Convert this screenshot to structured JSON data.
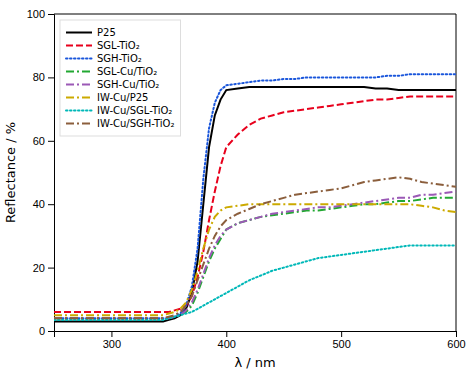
{
  "chart_data": {
    "type": "line",
    "xlabel": "λ / nm",
    "ylabel": "Reflectance / %",
    "xlim": [
      250,
      600
    ],
    "ylim": [
      0,
      100
    ],
    "xticks": [
      300,
      400,
      500,
      600
    ],
    "yticks": [
      0,
      20,
      40,
      60,
      80,
      100
    ],
    "grid": false,
    "legend": "upper left",
    "x": [
      250,
      260,
      270,
      280,
      290,
      300,
      310,
      320,
      325,
      330,
      335,
      340,
      345,
      350,
      355,
      360,
      365,
      370,
      375,
      380,
      385,
      390,
      395,
      400,
      410,
      420,
      430,
      440,
      450,
      460,
      470,
      480,
      490,
      500,
      510,
      520,
      530,
      540,
      550,
      560,
      570,
      580,
      590,
      600
    ],
    "series": [
      {
        "name": "P25",
        "color": "#000000",
        "line_style": "solid",
        "values": [
          3,
          3,
          3,
          3,
          3,
          3,
          3,
          3,
          3,
          3,
          3,
          3,
          3,
          3.5,
          4,
          5,
          7,
          12,
          22,
          40,
          58,
          68,
          73,
          76,
          76.5,
          77,
          77,
          77,
          77,
          77,
          77,
          77,
          77,
          77,
          77,
          77,
          76.5,
          76.5,
          76,
          76,
          76,
          76,
          76,
          76
        ]
      },
      {
        "name": "SGL-TiO₂",
        "color": "#e8001c",
        "line_style": "dashed",
        "values": [
          6,
          6,
          6,
          6,
          6,
          6,
          6,
          6,
          6,
          6,
          6,
          6,
          6,
          6,
          6.5,
          7,
          8,
          11,
          17,
          25,
          35,
          44,
          52,
          58,
          62,
          65,
          67,
          68,
          69,
          69.5,
          70,
          70.5,
          71,
          71.5,
          72,
          72.5,
          73,
          73,
          73.5,
          74,
          74,
          74,
          74,
          74
        ]
      },
      {
        "name": "SGH-TiO₂",
        "color": "#1a56db",
        "line_style": "dotted",
        "values": [
          4,
          4,
          4,
          4,
          4,
          4,
          4,
          4,
          4,
          4,
          4,
          4,
          4,
          4,
          4.5,
          5.5,
          8,
          14,
          26,
          48,
          64,
          72,
          76,
          77.5,
          78,
          78.5,
          79,
          79,
          79.5,
          79.5,
          80,
          80,
          80,
          80,
          80,
          80,
          80,
          80.5,
          80.5,
          81,
          81,
          81,
          81,
          81
        ]
      },
      {
        "name": "SGL-Cu/TiO₂",
        "color": "#22a832",
        "line_style": "dashdot",
        "values": [
          4,
          4,
          4,
          4,
          4,
          4,
          4,
          4,
          4,
          4,
          4,
          4,
          4,
          4,
          4.5,
          5,
          6,
          8,
          12,
          17,
          22,
          26,
          29,
          32,
          34,
          35,
          36,
          36.5,
          37,
          37.5,
          38,
          38,
          38.5,
          39,
          39.5,
          40,
          40,
          40.5,
          41,
          41,
          41.5,
          42,
          42,
          42
        ]
      },
      {
        "name": "SGH-Cu/TiO₂",
        "color": "#9b59b6",
        "line_style": "dashdot",
        "values": [
          4,
          4,
          4,
          4,
          4,
          4,
          4,
          4,
          4,
          4,
          4,
          4,
          4,
          4,
          4.5,
          5,
          6.5,
          9,
          13,
          18,
          23,
          27,
          30,
          32,
          34,
          35,
          36,
          37,
          37.5,
          38,
          38.5,
          39,
          39,
          39.5,
          40,
          40.5,
          41,
          41.5,
          42,
          42,
          43,
          43,
          43.5,
          44
        ]
      },
      {
        "name": "IW-Cu/P25",
        "color": "#ccaa00",
        "line_style": "dashdot",
        "values": [
          5,
          5,
          5,
          5,
          5,
          5,
          5,
          5,
          5,
          5,
          5,
          5,
          5,
          5.5,
          6,
          7,
          9,
          13,
          19,
          26,
          32,
          36,
          38,
          39,
          39.5,
          40,
          40,
          40,
          40,
          40,
          40,
          40,
          40,
          40,
          40,
          40,
          40,
          40,
          40,
          40,
          39.5,
          39,
          38,
          37.5
        ]
      },
      {
        "name": "IW-Cu/SGL-TiO₂",
        "color": "#00b8b8",
        "line_style": "dotted",
        "values": [
          3.5,
          3.5,
          3.5,
          3.5,
          3.5,
          3.5,
          3.5,
          3.5,
          3.5,
          3.5,
          3.5,
          3.5,
          3.5,
          4,
          4.5,
          5,
          5.5,
          6,
          7,
          8,
          9,
          10,
          11,
          12,
          14,
          16,
          17.5,
          19,
          20,
          21,
          22,
          23,
          23.5,
          24,
          24.5,
          25,
          25.5,
          26,
          26.5,
          27,
          27,
          27,
          27,
          27
        ]
      },
      {
        "name": "IW-Cu/SGH-TiO₂",
        "color": "#8b5e3c",
        "line_style": "dashdot",
        "values": [
          4,
          4,
          4,
          4,
          4,
          4,
          4,
          4,
          4,
          4,
          4,
          4,
          4,
          4.5,
          5,
          6,
          8,
          11,
          16,
          21,
          26,
          30,
          33,
          35,
          37,
          38.5,
          40,
          41,
          42,
          43,
          43.5,
          44,
          44.5,
          45,
          46,
          47,
          47.5,
          48,
          48.5,
          48,
          47,
          46.5,
          46,
          45.5
        ]
      }
    ]
  }
}
